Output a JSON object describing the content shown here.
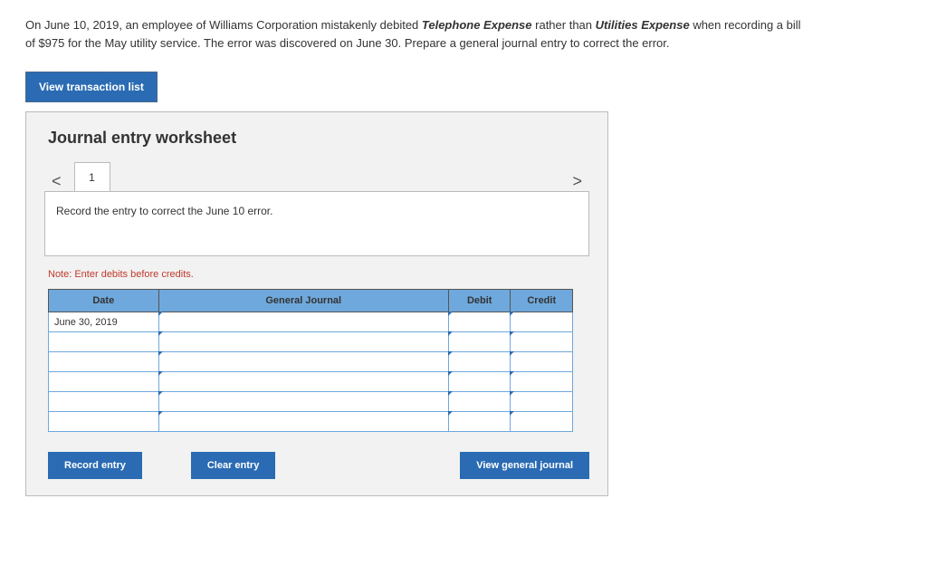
{
  "question": {
    "prefix": "On June 10, 2019, an employee of Williams Corporation mistakenly debited ",
    "em1": "Telephone Expense",
    "mid": " rather than ",
    "em2": "Utilities Expense",
    "suffix": " when recording a bill of  $975 for the May utility service. The error was discovered on June 30. Prepare a general journal entry to correct the error."
  },
  "view_transaction_label": "View transaction list",
  "worksheet": {
    "title": "Journal entry worksheet",
    "tab_label": "1",
    "arrow_left": "<",
    "arrow_right": ">",
    "instruction": "Record the entry to correct the June 10 error.",
    "note": "Note: Enter debits before credits.",
    "table": {
      "headers": {
        "date": "Date",
        "gj": "General Journal",
        "debit": "Debit",
        "credit": "Credit"
      },
      "rows": [
        {
          "date": "June 30, 2019",
          "gj": "",
          "debit": "",
          "credit": ""
        },
        {
          "date": "",
          "gj": "",
          "debit": "",
          "credit": ""
        },
        {
          "date": "",
          "gj": "",
          "debit": "",
          "credit": ""
        },
        {
          "date": "",
          "gj": "",
          "debit": "",
          "credit": ""
        },
        {
          "date": "",
          "gj": "",
          "debit": "",
          "credit": ""
        },
        {
          "date": "",
          "gj": "",
          "debit": "",
          "credit": ""
        }
      ],
      "header_bg": "#6fa8dc",
      "cell_border": "#6fa8dc"
    },
    "buttons": {
      "record": "Record entry",
      "clear": "Clear entry",
      "view_gj": "View general journal"
    }
  }
}
